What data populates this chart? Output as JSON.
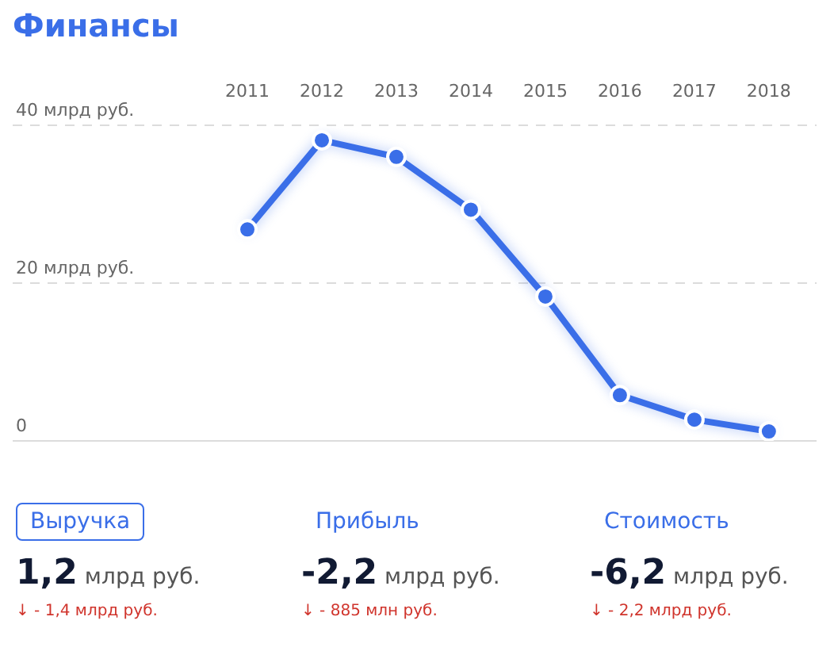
{
  "chart_data": {
    "type": "line",
    "title": "Финансы",
    "categories": [
      "2011",
      "2012",
      "2013",
      "2014",
      "2015",
      "2016",
      "2017",
      "2018"
    ],
    "series": [
      {
        "color": "#3a6ee8",
        "values": [
          26.8,
          38.1,
          36.0,
          29.3,
          18.3,
          5.8,
          2.7,
          1.2
        ]
      }
    ],
    "ylim": [
      0,
      40
    ],
    "yticks": [
      {
        "value": 0,
        "label": "0"
      },
      {
        "value": 20,
        "label": "20 млрд руб."
      },
      {
        "value": 40,
        "label": "40 млрд руб."
      }
    ],
    "grid": "y",
    "marker": "circle",
    "line_style": "solid",
    "annotations": [
      "Выручка",
      "1,2 млрд руб.",
      "↓ - 1,4 млрд руб.",
      "Прибыль",
      "-2,2 млрд руб.",
      "↓ - 885 млн руб.",
      "Стоимость",
      "-6,2 млрд руб.",
      "↓ - 2,2 млрд руб."
    ]
  }
}
